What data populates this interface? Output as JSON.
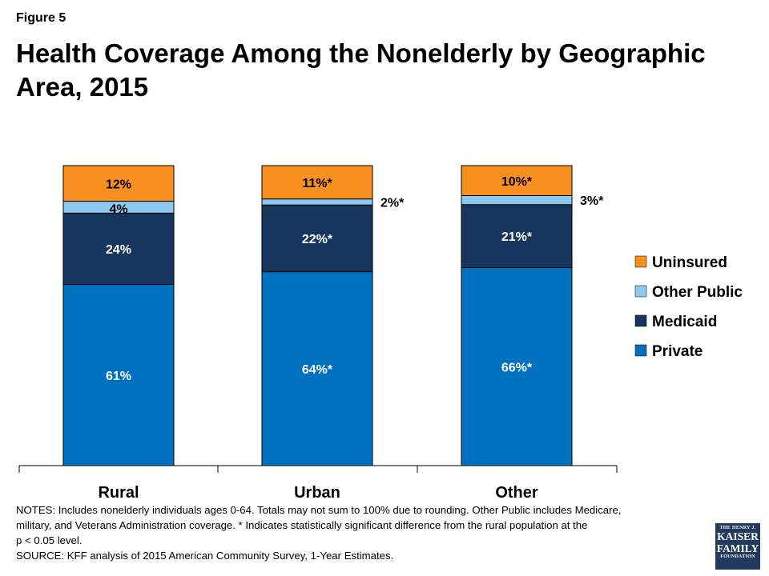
{
  "figure_label": "Figure 5",
  "chart_data": {
    "type": "bar",
    "stacked": true,
    "title": "Health Coverage Among the Nonelderly by Geographic Area, 2015",
    "categories": [
      "Rural",
      "Urban",
      "Other"
    ],
    "series": [
      {
        "name": "Private",
        "color": "#0070C0",
        "values": [
          61,
          64,
          66
        ],
        "labels": [
          "61%",
          "64%*",
          "66%*"
        ]
      },
      {
        "name": "Medicaid",
        "color": "#17365D",
        "values": [
          24,
          22,
          21
        ],
        "labels": [
          "24%",
          "22%*",
          "21%*"
        ]
      },
      {
        "name": "Other Public",
        "color": "#8DC8EE",
        "values": [
          4,
          2,
          3
        ],
        "labels": [
          "4%",
          "2%*",
          "3%*"
        ]
      },
      {
        "name": "Uninsured",
        "color": "#F7901E",
        "values": [
          12,
          11,
          10
        ],
        "labels": [
          "12%",
          "11%*",
          "10%*"
        ]
      }
    ],
    "legend": {
      "position": "right",
      "order": [
        "Uninsured",
        "Other Public",
        "Medicaid",
        "Private"
      ]
    },
    "ylim": [
      0,
      100
    ],
    "grid": false
  },
  "notes": {
    "line1": "NOTES: Includes nonelderly individuals ages 0-64. Totals may not sum to 100% due to rounding. Other Public includes Medicare,",
    "line2": "military, and Veterans Administration coverage. * Indicates statistically significant difference from the rural population at the",
    "line3": "p < 0.05 level.",
    "source": "SOURCE: KFF analysis of 2015 American Community Survey, 1-Year Estimates."
  },
  "logo": {
    "line1": "THE HENRY J.",
    "line2": "KAISER",
    "line3": "FAMILY",
    "line4": "FOUNDATION"
  }
}
